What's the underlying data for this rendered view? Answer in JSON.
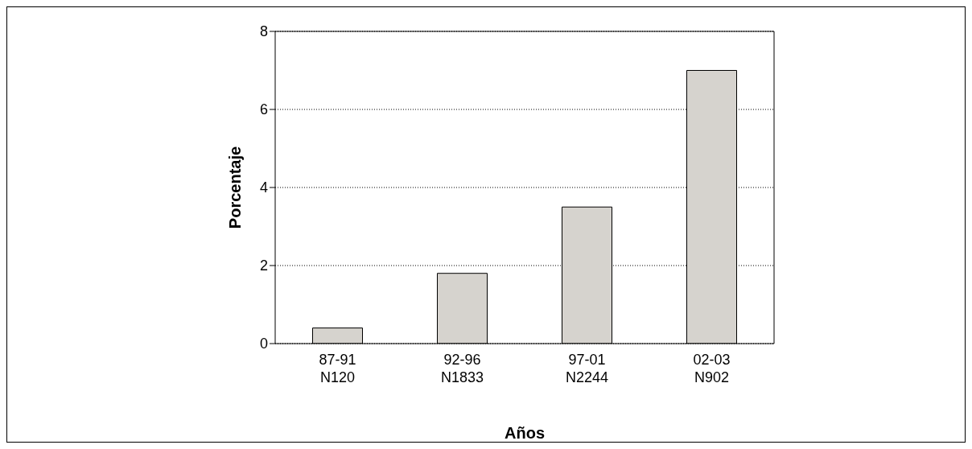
{
  "chart_data": {
    "type": "bar",
    "xlabel": "Años",
    "ylabel": "Porcentaje",
    "categories": [
      "87-91\nN120",
      "92-96\nN1833",
      "97-01\nN2244",
      "02-03\nN902"
    ],
    "values": [
      0.4,
      1.8,
      3.5,
      7.0
    ],
    "color": "#d6d3ce",
    "ylim": [
      0,
      8
    ],
    "yticks": [
      0,
      2,
      4,
      6,
      8
    ],
    "grid": "y"
  }
}
